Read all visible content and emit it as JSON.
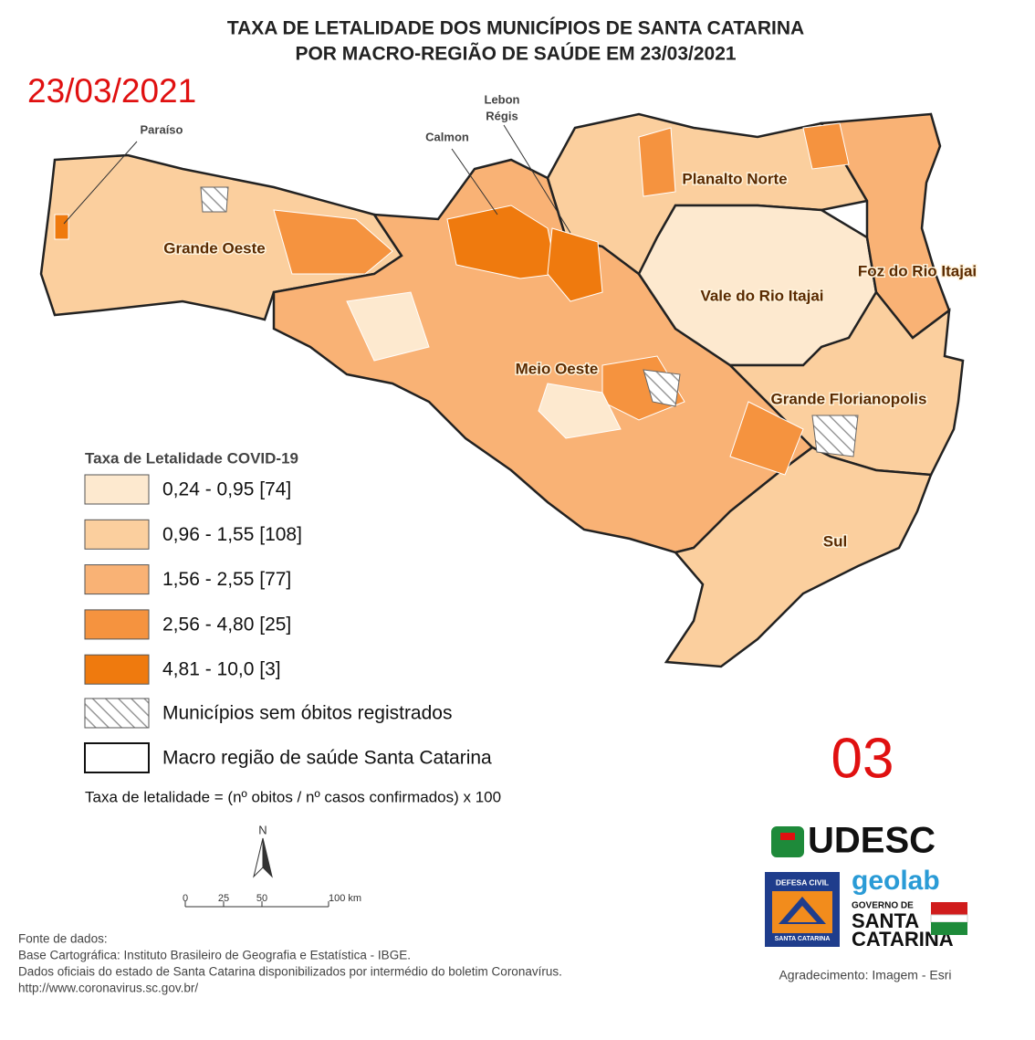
{
  "header": {
    "title_lines": [
      "TAXA DE LETALIDADE DOS MUNICÍPIOS DE SANTA CATARINA",
      "POR MACRO-REGIÃO DE SAÚDE EM 23/03/2021"
    ],
    "date": "23/03/2021",
    "page_number": "03"
  },
  "map": {
    "regions": [
      "Grande Oeste",
      "Meio Oeste",
      "Planalto Norte",
      "Vale do Rio Itajai",
      "Foz do Rio Itajai",
      "Grande Florianopolis",
      "Sul"
    ],
    "callouts": [
      "Paraíso",
      "Calmon",
      "Lebon",
      "Régis"
    ]
  },
  "legend": {
    "title": "Taxa de Letalidade COVID-19",
    "items": [
      {
        "label": "0,24 - 0,95 [74]",
        "color": "#fde9cf"
      },
      {
        "label": "0,96 - 1,55 [108]",
        "color": "#fbcf9e"
      },
      {
        "label": "1,56 - 2,55 [77]",
        "color": "#f9b275"
      },
      {
        "label": "2,56 - 4,80 [25]",
        "color": "#f5933f"
      },
      {
        "label": "4,81 - 10,0 [3]",
        "color": "#ef7a0e"
      }
    ],
    "no_deaths": "Municípios sem óbitos registrados",
    "macro_region": "Macro região de saúde Santa Catarina",
    "formula": "Taxa de letalidade = (nº obitos / nº casos confirmados) x 100"
  },
  "scale": {
    "north": "N",
    "labels": [
      "0",
      "25",
      "50",
      "100 km"
    ]
  },
  "sources": [
    "Fonte de dados:",
    "Base Cartográfica: Instituto Brasileiro de Geografia e Estatística - IBGE.",
    "Dados oficiais do estado de Santa Catarina disponibilizados por intermédio do boletim Coronavírus.",
    "http://www.coronavirus.sc.gov.br/"
  ],
  "logos": {
    "udesc": "UDESC",
    "geolab": "geolab",
    "defesa_civil": "DEFESA CIVIL",
    "defesa_civil_sub": "SANTA CATARINA",
    "governo": "GOVERNO DE",
    "governo_state_1": "SANTA",
    "governo_state_2": "CATARINA"
  },
  "credit": "Agradecimento: Imagem - Esri"
}
